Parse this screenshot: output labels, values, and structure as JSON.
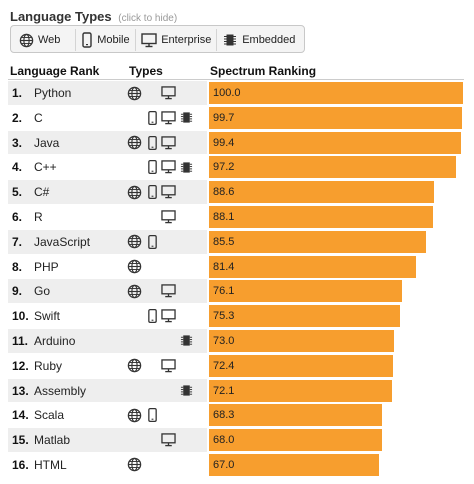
{
  "legend": {
    "title": "Language Types",
    "hint": "(click to hide)",
    "types": [
      {
        "key": "web",
        "label": "Web",
        "icon": "globe-icon"
      },
      {
        "key": "mobile",
        "label": "Mobile",
        "icon": "mobile-phone-icon"
      },
      {
        "key": "enterprise",
        "label": "Enterprise",
        "icon": "desktop-monitor-icon"
      },
      {
        "key": "embedded",
        "label": "Embedded",
        "icon": "chip-icon"
      }
    ]
  },
  "columns": {
    "rank": "Language Rank",
    "types": "Types",
    "spectrum": "Spectrum Ranking"
  },
  "colors": {
    "bar": "#f79e2e",
    "alt_row": "#eeeeee"
  },
  "chart_data": {
    "type": "bar",
    "orientation": "horizontal",
    "xlim": [
      0,
      100
    ],
    "rows": [
      {
        "rank": "1.",
        "name": "Python",
        "value": "100.0",
        "types": [
          "web",
          "enterprise"
        ]
      },
      {
        "rank": "2.",
        "name": "C",
        "value": "99.7",
        "types": [
          "mobile",
          "enterprise",
          "embedded"
        ]
      },
      {
        "rank": "3.",
        "name": "Java",
        "value": "99.4",
        "types": [
          "web",
          "mobile",
          "enterprise"
        ]
      },
      {
        "rank": "4.",
        "name": "C++",
        "value": "97.2",
        "types": [
          "mobile",
          "enterprise",
          "embedded"
        ]
      },
      {
        "rank": "5.",
        "name": "C#",
        "value": "88.6",
        "types": [
          "web",
          "mobile",
          "enterprise"
        ]
      },
      {
        "rank": "6.",
        "name": "R",
        "value": "88.1",
        "types": [
          "enterprise"
        ]
      },
      {
        "rank": "7.",
        "name": "JavaScript",
        "value": "85.5",
        "types": [
          "web",
          "mobile"
        ]
      },
      {
        "rank": "8.",
        "name": "PHP",
        "value": "81.4",
        "types": [
          "web"
        ]
      },
      {
        "rank": "9.",
        "name": "Go",
        "value": "76.1",
        "types": [
          "web",
          "enterprise"
        ]
      },
      {
        "rank": "10.",
        "name": "Swift",
        "value": "75.3",
        "types": [
          "mobile",
          "enterprise"
        ]
      },
      {
        "rank": "11.",
        "name": "Arduino",
        "value": "73.0",
        "types": [
          "embedded"
        ]
      },
      {
        "rank": "12.",
        "name": "Ruby",
        "value": "72.4",
        "types": [
          "web",
          "enterprise"
        ]
      },
      {
        "rank": "13.",
        "name": "Assembly",
        "value": "72.1",
        "types": [
          "embedded"
        ]
      },
      {
        "rank": "14.",
        "name": "Scala",
        "value": "68.3",
        "types": [
          "web",
          "mobile"
        ]
      },
      {
        "rank": "15.",
        "name": "Matlab",
        "value": "68.0",
        "types": [
          "enterprise"
        ]
      },
      {
        "rank": "16.",
        "name": "HTML",
        "value": "67.0",
        "types": [
          "web"
        ]
      }
    ]
  }
}
